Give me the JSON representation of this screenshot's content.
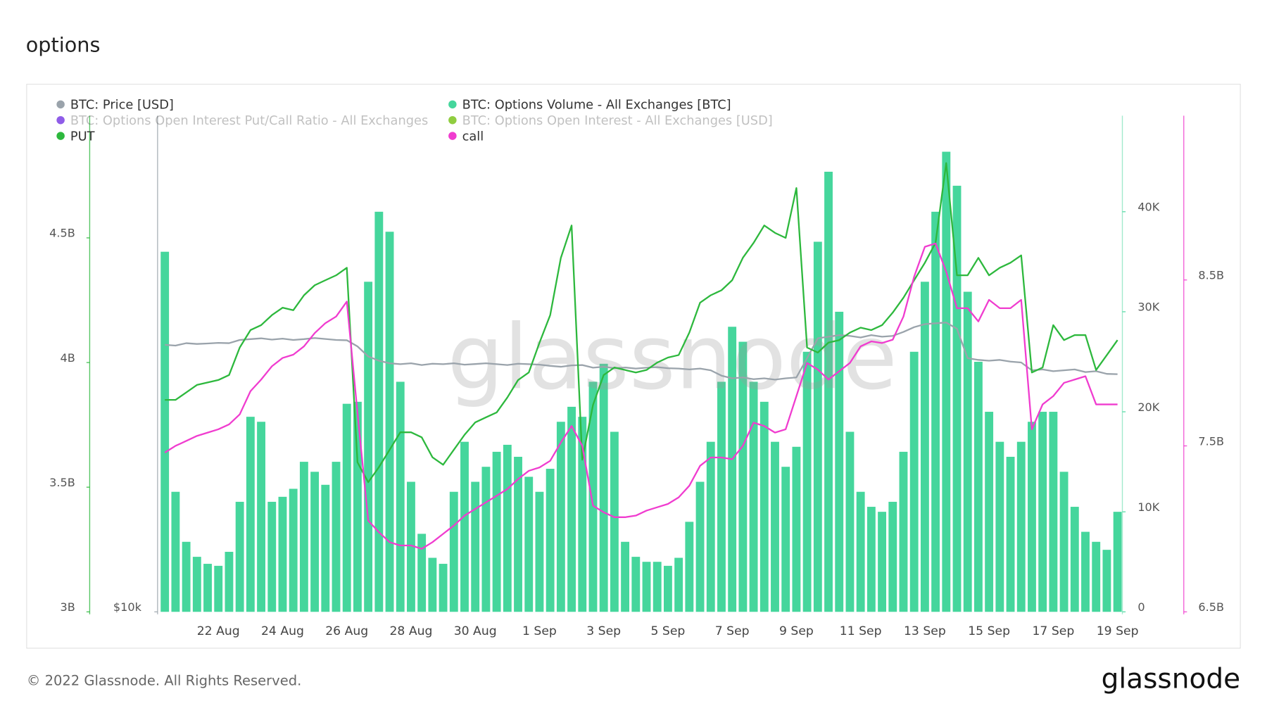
{
  "chart_data": {
    "type": "combo",
    "title": "options",
    "watermark": "glassnode",
    "footer": "© 2022 Glassnode. All Rights Reserved.",
    "brand": "glassnode",
    "categories": [
      null,
      null,
      null,
      null,
      null,
      "22 Aug",
      null,
      null,
      null,
      null,
      null,
      "24 Aug",
      null,
      null,
      null,
      null,
      null,
      "26 Aug",
      null,
      null,
      null,
      null,
      null,
      "28 Aug",
      null,
      null,
      null,
      null,
      null,
      "30 Aug",
      null,
      null,
      null,
      null,
      null,
      "1 Sep",
      null,
      null,
      null,
      null,
      null,
      "3 Sep",
      null,
      null,
      null,
      null,
      null,
      "5 Sep",
      null,
      null,
      null,
      null,
      null,
      "7 Sep",
      null,
      null,
      null,
      null,
      null,
      "9 Sep",
      null,
      null,
      null,
      null,
      null,
      "11 Sep",
      null,
      null,
      null,
      null,
      null,
      "13 Sep",
      null,
      null,
      null,
      null,
      null,
      "15 Sep",
      null,
      null,
      null,
      null,
      null,
      "17 Sep",
      null,
      null,
      null,
      null,
      null,
      "19 Sep"
    ],
    "series": [
      {
        "name": "BTC: Price [USD]",
        "type": "line",
        "axis": "y4",
        "color": "#9aa3ab",
        "visible": true,
        "values": [
          21400,
          21350,
          21500,
          21450,
          21480,
          21520,
          21500,
          21700,
          21750,
          21800,
          21720,
          21780,
          21700,
          21750,
          21820,
          21760,
          21700,
          21680,
          21300,
          20700,
          20450,
          20300,
          20250,
          20300,
          20200,
          20280,
          20250,
          20300,
          20220,
          20260,
          20300,
          20250,
          20200,
          20280,
          20250,
          20220,
          20150,
          20100,
          20180,
          20200,
          20050,
          20100,
          20020,
          20060,
          20000,
          20050,
          20080,
          20020,
          20000,
          19950,
          20000,
          19900,
          19600,
          19450,
          19500,
          19400,
          19450,
          19380,
          19450,
          19500,
          20600,
          21800,
          21900,
          22000,
          21950,
          21850,
          22000,
          21900,
          21950,
          22200,
          22500,
          22700,
          22750,
          22800,
          22400,
          20600,
          20500,
          20450,
          20500,
          20400,
          20350,
          19900,
          19950,
          19850,
          19900,
          19950,
          19800,
          19850,
          19700,
          19680
        ]
      },
      {
        "name": "BTC: Options Volume - All Exchanges [BTC]",
        "type": "bar",
        "axis": "y2",
        "color": "#45d69c",
        "visible": true,
        "values": [
          36000,
          12000,
          7000,
          5500,
          4800,
          4600,
          6000,
          11000,
          19500,
          19000,
          11000,
          11500,
          12300,
          15000,
          14000,
          12700,
          15000,
          20800,
          21000,
          33000,
          40000,
          38000,
          23000,
          13000,
          7800,
          5400,
          4800,
          12000,
          17000,
          13000,
          14500,
          16000,
          16700,
          15500,
          13500,
          12000,
          14300,
          19000,
          20500,
          19500,
          23000,
          24800,
          18000,
          7000,
          5500,
          5000,
          5000,
          4600,
          5400,
          9000,
          13000,
          17000,
          23000,
          28500,
          27000,
          23000,
          21000,
          17000,
          14500,
          16500,
          26000,
          37000,
          44000,
          30000,
          18000,
          12000,
          10500,
          10000,
          11000,
          16000,
          26000,
          33000,
          40000,
          46000,
          42600,
          32000,
          25000,
          20000,
          17000,
          15500,
          17000,
          19000,
          20000,
          20000,
          14000,
          10500,
          8000,
          7000,
          6200,
          10000
        ]
      },
      {
        "name": "BTC: Options Open Interest Put/Call Ratio - All Exchanges",
        "type": "line",
        "color": "#7b3fe4",
        "visible": false
      },
      {
        "name": "BTC: Options Open Interest - All Exchanges [USD]",
        "type": "line",
        "color": "#7cc41f",
        "visible": false
      },
      {
        "name": "PUT",
        "type": "line",
        "axis": "y",
        "color": "#2db83d",
        "visible": true,
        "values": [
          3850000000.0,
          3850000000.0,
          3880000000.0,
          3910000000.0,
          3920000000.0,
          3930000000.0,
          3950000000.0,
          4060000000.0,
          4130000000.0,
          4150000000.0,
          4190000000.0,
          4220000000.0,
          4210000000.0,
          4270000000.0,
          4310000000.0,
          4330000000.0,
          4350000000.0,
          4380000000.0,
          3600000000.0,
          3520000000.0,
          3580000000.0,
          3650000000.0,
          3720000000.0,
          3720000000.0,
          3700000000.0,
          3620000000.0,
          3590000000.0,
          3650000000.0,
          3710000000.0,
          3760000000.0,
          3780000000.0,
          3800000000.0,
          3860000000.0,
          3930000000.0,
          3960000000.0,
          4080000000.0,
          4190000000.0,
          4420000000.0,
          4550000000.0,
          3610000000.0,
          3830000000.0,
          3950000000.0,
          3980000000.0,
          3970000000.0,
          3960000000.0,
          3970000000.0,
          4000000000.0,
          4020000000.0,
          4030000000.0,
          4120000000.0,
          4240000000.0,
          4270000000.0,
          4290000000.0,
          4330000000.0,
          4420000000.0,
          4480000000.0,
          4550000000.0,
          4520000000.0,
          4500000000.0,
          4700000000.0,
          4060000000.0,
          4040000000.0,
          4080000000.0,
          4090000000.0,
          4120000000.0,
          4140000000.0,
          4130000000.0,
          4150000000.0,
          4200000000.0,
          4260000000.0,
          4330000000.0,
          4400000000.0,
          4480000000.0,
          4800000000.0,
          4350000000.0,
          4350000000.0,
          4420000000.0,
          4350000000.0,
          4380000000.0,
          4400000000.0,
          4430000000.0,
          3960000000.0,
          3980000000.0,
          4150000000.0,
          4090000000.0,
          4110000000.0,
          4110000000.0,
          3970000000.0,
          4030000000.0,
          4090000000.0
        ]
      },
      {
        "name": "call",
        "type": "line",
        "axis": "y3",
        "color": "#f03ccf",
        "visible": true,
        "values": [
          7460000000.0,
          7500000000.0,
          7530000000.0,
          7560000000.0,
          7580000000.0,
          7600000000.0,
          7630000000.0,
          7690000000.0,
          7830000000.0,
          7900000000.0,
          7980000000.0,
          8030000000.0,
          8050000000.0,
          8100000000.0,
          8180000000.0,
          8240000000.0,
          8280000000.0,
          8370000000.0,
          7700000000.0,
          7050000000.0,
          6980000000.0,
          6920000000.0,
          6900000000.0,
          6900000000.0,
          6880000000.0,
          6920000000.0,
          6970000000.0,
          7020000000.0,
          7080000000.0,
          7120000000.0,
          7160000000.0,
          7200000000.0,
          7240000000.0,
          7300000000.0,
          7350000000.0,
          7370000000.0,
          7410000000.0,
          7520000000.0,
          7620000000.0,
          7500000000.0,
          7140000000.0,
          7100000000.0,
          7070000000.0,
          7070000000.0,
          7080000000.0,
          7110000000.0,
          7130000000.0,
          7150000000.0,
          7190000000.0,
          7260000000.0,
          7380000000.0,
          7430000000.0,
          7430000000.0,
          7420000000.0,
          7500000000.0,
          7640000000.0,
          7620000000.0,
          7580000000.0,
          7600000000.0,
          7800000000.0,
          8000000000.0,
          7960000000.0,
          7900000000.0,
          7950000000.0,
          8000000000.0,
          8100000000.0,
          8130000000.0,
          8120000000.0,
          8140000000.0,
          8280000000.0,
          8520000000.0,
          8700000000.0,
          8720000000.0,
          8550000000.0,
          8330000000.0,
          8330000000.0,
          8250000000.0,
          8380000000.0,
          8330000000.0,
          8330000000.0,
          8380000000.0,
          7600000000.0,
          7750000000.0,
          7800000000.0,
          7880000000.0,
          7900000000.0,
          7920000000.0,
          7750000000.0,
          7750000000.0,
          7750000000.0
        ]
      }
    ],
    "ylim": [
      3000000000.0,
      4990000000.0
    ],
    "yticks": [
      {
        "value": 3000000000.0,
        "label": "3B"
      },
      {
        "value": 3500000000.0,
        "label": "3.5B"
      },
      {
        "value": 4000000000.0,
        "label": "4B"
      },
      {
        "value": 4500000000.0,
        "label": "4.5B"
      }
    ],
    "y2lim": [
      0,
      49600
    ],
    "y2ticks": [
      0,
      {
        "value": 10000,
        "label": "10K"
      },
      {
        "value": 20000,
        "label": "20K"
      },
      {
        "value": 30000,
        "label": "30K"
      },
      {
        "value": 40000,
        "label": "40K"
      }
    ],
    "y3lim": [
      6500000000.0,
      9490000000.0
    ],
    "y3ticks": [
      {
        "value": 6500000000.0,
        "label": "6.5B"
      },
      {
        "value": 7500000000.0,
        "label": "7.5B"
      },
      {
        "value": 8500000000.0,
        "label": "8.5B"
      }
    ],
    "y4lim": [
      10000,
      41100
    ],
    "y4log": true,
    "y4ticks": [
      {
        "value": 10000,
        "label": "$10k"
      }
    ],
    "grid": false
  }
}
